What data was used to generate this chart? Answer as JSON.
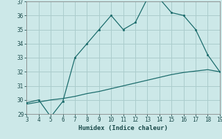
{
  "xlabel": "Humidex (Indice chaleur)",
  "background_color": "#cce8e8",
  "grid_color": "#aacccc",
  "line_color": "#1a6b6b",
  "x_main": [
    3,
    4,
    5,
    6,
    7,
    8,
    9,
    10,
    11,
    12,
    13,
    14,
    15,
    16,
    17,
    18,
    19
  ],
  "y_main": [
    29.8,
    30.0,
    28.8,
    29.9,
    33.0,
    34.0,
    35.0,
    36.0,
    35.0,
    35.5,
    37.2,
    37.2,
    36.2,
    36.0,
    35.0,
    33.2,
    32.0
  ],
  "x_trend": [
    3,
    4,
    5,
    6,
    7,
    8,
    9,
    10,
    11,
    12,
    13,
    14,
    15,
    16,
    17,
    18,
    19
  ],
  "y_trend": [
    29.7,
    29.85,
    30.0,
    30.1,
    30.25,
    30.45,
    30.6,
    30.8,
    31.0,
    31.2,
    31.4,
    31.6,
    31.8,
    31.95,
    32.05,
    32.15,
    32.0
  ],
  "xlim": [
    3,
    19
  ],
  "ylim": [
    29,
    37
  ],
  "xticks": [
    3,
    4,
    5,
    6,
    7,
    8,
    9,
    10,
    11,
    12,
    13,
    14,
    15,
    16,
    17,
    18,
    19
  ],
  "yticks": [
    29,
    30,
    31,
    32,
    33,
    34,
    35,
    36,
    37
  ]
}
